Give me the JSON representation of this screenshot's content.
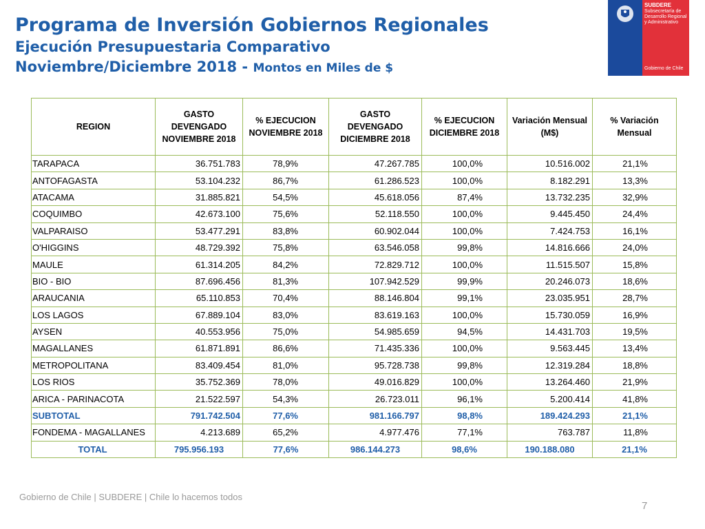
{
  "header": {
    "title": "Programa de Inversión Gobiernos Regionales",
    "subtitle": "Ejecución Presupuestaria Comparativo",
    "period": "Noviembre/Diciembre 2018 - ",
    "units": "Montos en Miles de $"
  },
  "logo": {
    "name": "SUBDERE",
    "org": "Subsecretaría de Desarrollo Regional y Administrativo",
    "gov": "Gobierno de Chile"
  },
  "table": {
    "columns": [
      "REGION",
      "GASTO DEVENGADO NOVIEMBRE 2018",
      "% EJECUCION NOVIEMBRE 2018",
      "GASTO DEVENGADO DICIEMBRE 2018",
      "% EJECUCION DICIEMBRE 2018",
      "Variación Mensual (M$)",
      "% Variación Mensual"
    ],
    "rows": [
      [
        "TARAPACA",
        "36.751.783",
        "78,9%",
        "47.267.785",
        "100,0%",
        "10.516.002",
        "21,1%"
      ],
      [
        "ANTOFAGASTA",
        "53.104.232",
        "86,7%",
        "61.286.523",
        "100,0%",
        "8.182.291",
        "13,3%"
      ],
      [
        "ATACAMA",
        "31.885.821",
        "54,5%",
        "45.618.056",
        "87,4%",
        "13.732.235",
        "32,9%"
      ],
      [
        "COQUIMBO",
        "42.673.100",
        "75,6%",
        "52.118.550",
        "100,0%",
        "9.445.450",
        "24,4%"
      ],
      [
        "VALPARAISO",
        "53.477.291",
        "83,8%",
        "60.902.044",
        "100,0%",
        "7.424.753",
        "16,1%"
      ],
      [
        "O'HIGGINS",
        "48.729.392",
        "75,8%",
        "63.546.058",
        "99,8%",
        "14.816.666",
        "24,0%"
      ],
      [
        "MAULE",
        "61.314.205",
        "84,2%",
        "72.829.712",
        "100,0%",
        "11.515.507",
        "15,8%"
      ],
      [
        "BIO - BIO",
        "87.696.456",
        "81,3%",
        "107.942.529",
        "99,9%",
        "20.246.073",
        "18,6%"
      ],
      [
        "ARAUCANIA",
        "65.110.853",
        "70,4%",
        "88.146.804",
        "99,1%",
        "23.035.951",
        "28,7%"
      ],
      [
        "LOS LAGOS",
        "67.889.104",
        "83,0%",
        "83.619.163",
        "100,0%",
        "15.730.059",
        "16,9%"
      ],
      [
        "AYSEN",
        "40.553.956",
        "75,0%",
        "54.985.659",
        "94,5%",
        "14.431.703",
        "19,5%"
      ],
      [
        "MAGALLANES",
        "61.871.891",
        "86,6%",
        "71.435.336",
        "100,0%",
        "9.563.445",
        "13,4%"
      ],
      [
        "METROPOLITANA",
        "83.409.454",
        "81,0%",
        "95.728.738",
        "99,8%",
        "12.319.284",
        "18,8%"
      ],
      [
        "LOS RIOS",
        "35.752.369",
        "78,0%",
        "49.016.829",
        "100,0%",
        "13.264.460",
        "21,9%"
      ],
      [
        "ARICA - PARINACOTA",
        "21.522.597",
        "54,3%",
        "26.723.011",
        "96,1%",
        "5.200.414",
        "41,8%"
      ]
    ],
    "subtotal": [
      "SUBTOTAL",
      "791.742.504",
      "77,6%",
      "981.166.797",
      "98,8%",
      "189.424.293",
      "21,1%"
    ],
    "extra_rows": [
      [
        "FONDEMA  - MAGALLANES",
        "4.213.689",
        "65,2%",
        "4.977.476",
        "77,1%",
        "763.787",
        "11,8%"
      ]
    ],
    "total": [
      "TOTAL",
      "795.956.193",
      "77,6%",
      "986.144.273",
      "98,6%",
      "190.188.080",
      "21,1%"
    ]
  },
  "footer": {
    "text": "Gobierno de Chile | SUBDERE | Chile lo hacemos todos",
    "page": "7"
  }
}
